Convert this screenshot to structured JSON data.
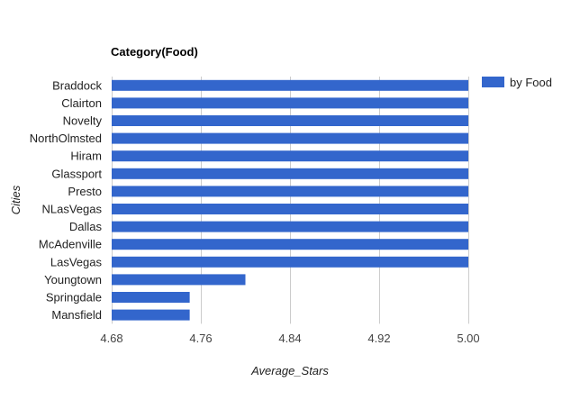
{
  "chart_data": {
    "type": "bar",
    "orientation": "horizontal",
    "title": "Category(Food)",
    "xlabel": "Average_Stars",
    "ylabel": "Cities",
    "categories": [
      "Braddock",
      "Clairton",
      "Novelty",
      "NorthOlmsted",
      "Hiram",
      "Glassport",
      "Presto",
      "NLasVegas",
      "Dallas",
      "McAdenville",
      "LasVegas",
      "Youngtown",
      "Springdale",
      "Mansfield"
    ],
    "series": [
      {
        "name": "by Food",
        "color": "#3366cc",
        "values": [
          5.0,
          5.0,
          5.0,
          5.0,
          5.0,
          5.0,
          5.0,
          5.0,
          5.0,
          5.0,
          5.0,
          4.8,
          4.75,
          4.75
        ]
      }
    ],
    "xlim": [
      4.68,
      5.0
    ],
    "xticks": [
      "4.68",
      "4.76",
      "4.84",
      "4.92",
      "5.00"
    ],
    "grid": true,
    "legend_position": "right"
  }
}
